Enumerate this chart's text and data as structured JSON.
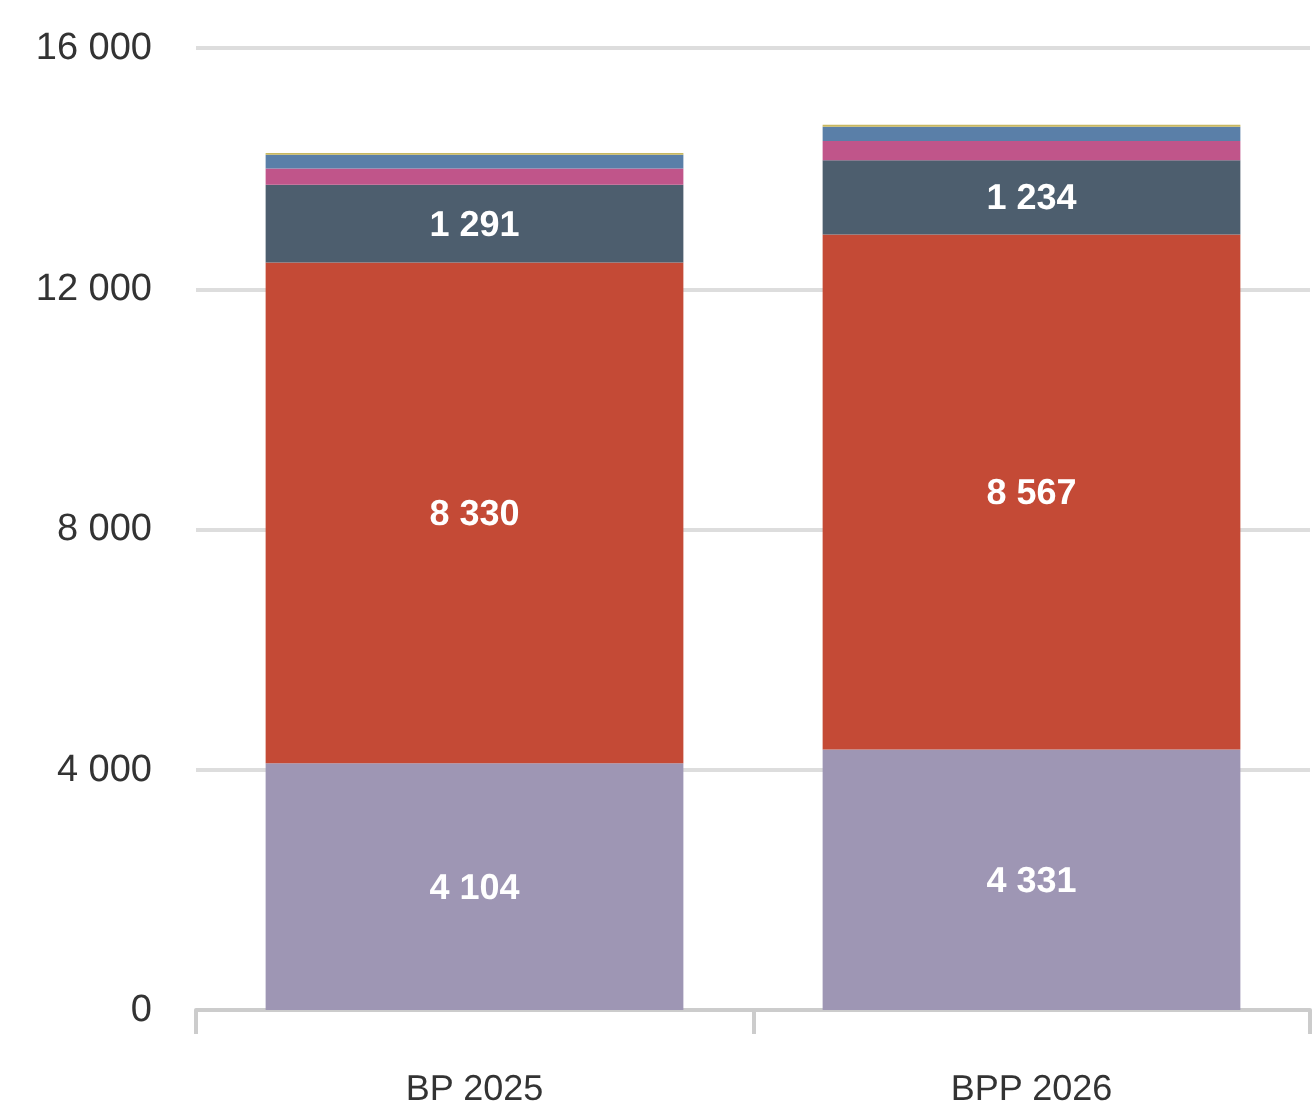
{
  "chart_data": {
    "type": "bar",
    "stacked": true,
    "categories": [
      "BP 2025",
      "BPP 2026"
    ],
    "series": [
      {
        "color": "#9e96b4",
        "values": [
          4104,
          4331
        ],
        "value_labels": [
          "4 104",
          "4 331"
        ]
      },
      {
        "color": "#c44a36",
        "values": [
          8330,
          8567
        ],
        "value_labels": [
          "8 330",
          "8 567"
        ]
      },
      {
        "color": "#4d5e6e",
        "values": [
          1291,
          1234
        ],
        "value_labels": [
          "1 291",
          "1 234"
        ]
      },
      {
        "color": "#c0558a",
        "values": [
          270,
          320
        ],
        "value_labels": [
          null,
          null
        ]
      },
      {
        "color": "#5a7fa8",
        "values": [
          230,
          240
        ],
        "value_labels": [
          null,
          null
        ]
      },
      {
        "color": "#c8b860",
        "values": [
          30,
          30
        ],
        "value_labels": [
          null,
          null
        ]
      }
    ],
    "ylim": [
      0,
      16000
    ],
    "yticks": [
      {
        "value": 0,
        "label": "0"
      },
      {
        "value": 4000,
        "label": "4 000"
      },
      {
        "value": 8000,
        "label": "8 000"
      },
      {
        "value": 12000,
        "label": "12 000"
      },
      {
        "value": 16000,
        "label": "16 000"
      }
    ],
    "grid": "y"
  }
}
